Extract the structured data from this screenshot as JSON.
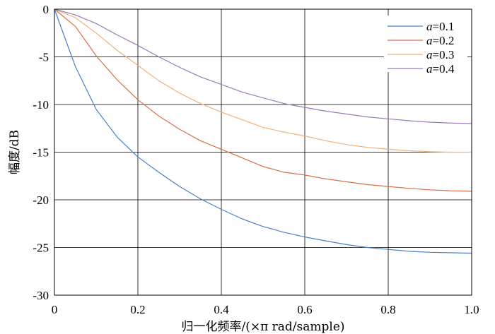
{
  "chart_data": {
    "type": "line",
    "xlabel": "归一化频率/(×π rad/sample)",
    "ylabel": "幅度/dB",
    "xlim": [
      0,
      1.0
    ],
    "ylim": [
      -30,
      0
    ],
    "x_ticks": [
      "0",
      "0.2",
      "0.4",
      "0.6",
      "0.8",
      "1.0"
    ],
    "y_ticks": [
      "0",
      "-5",
      "-10",
      "-15",
      "-20",
      "-25",
      "-30"
    ],
    "grid": true,
    "legend_position": "top-right",
    "x": [
      0,
      0.05,
      0.1,
      0.15,
      0.2,
      0.25,
      0.3,
      0.35,
      0.4,
      0.45,
      0.5,
      0.55,
      0.6,
      0.65,
      0.7,
      0.75,
      0.8,
      0.85,
      0.9,
      0.95,
      1.0
    ],
    "series": [
      {
        "name": "a=0.1",
        "legend_var": "a",
        "legend_val": "=0.1",
        "color": "#4a7fc6",
        "values": [
          0,
          -6.0,
          -10.5,
          -13.4,
          -15.5,
          -17.1,
          -18.6,
          -19.9,
          -21.0,
          -22.0,
          -22.8,
          -23.4,
          -23.9,
          -24.3,
          -24.7,
          -25.0,
          -25.2,
          -25.4,
          -25.5,
          -25.55,
          -25.6
        ]
      },
      {
        "name": "a=0.2",
        "legend_var": "a",
        "legend_val": "=0.2",
        "color": "#d86d4a",
        "values": [
          0,
          -1.8,
          -4.9,
          -7.4,
          -9.5,
          -11.2,
          -12.6,
          -13.8,
          -14.7,
          -15.6,
          -16.5,
          -17.1,
          -17.4,
          -17.8,
          -18.1,
          -18.4,
          -18.6,
          -18.8,
          -18.95,
          -19.05,
          -19.1
        ]
      },
      {
        "name": "a=0.3",
        "legend_var": "a",
        "legend_val": "=0.3",
        "color": "#efb27a",
        "values": [
          0,
          -0.9,
          -2.5,
          -4.3,
          -5.9,
          -7.5,
          -8.8,
          -9.9,
          -10.8,
          -11.6,
          -12.4,
          -12.9,
          -13.3,
          -13.8,
          -14.2,
          -14.5,
          -14.7,
          -14.85,
          -14.95,
          -15.0,
          -15.0
        ]
      },
      {
        "name": "a=0.4",
        "legend_var": "a",
        "legend_val": "=0.4",
        "color": "#9a7ab8",
        "values": [
          0,
          -0.6,
          -1.5,
          -2.7,
          -3.8,
          -5.0,
          -6.1,
          -7.1,
          -7.9,
          -8.7,
          -9.3,
          -9.9,
          -10.3,
          -10.7,
          -11.0,
          -11.3,
          -11.5,
          -11.7,
          -11.85,
          -11.95,
          -12.0
        ]
      }
    ]
  }
}
